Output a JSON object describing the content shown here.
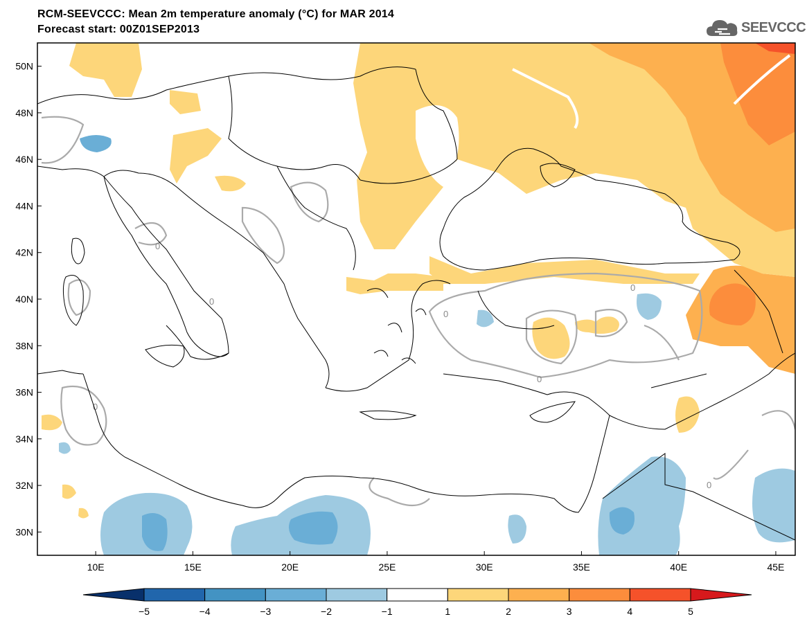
{
  "title_line1": "RCM-SEEVCCC: Mean 2m temperature anomaly (°C) for MAR 2014",
  "title_line2": "Forecast start: 00Z01SEP2013",
  "logo": {
    "text": "SEEVCCC",
    "icon": "cloud-icon"
  },
  "map": {
    "lon_range": [
      7,
      46
    ],
    "lat_range": [
      29,
      51
    ],
    "lat_ticks": [
      {
        "label": "50N",
        "value": 50
      },
      {
        "label": "48N",
        "value": 48
      },
      {
        "label": "46N",
        "value": 46
      },
      {
        "label": "44N",
        "value": 44
      },
      {
        "label": "42N",
        "value": 42
      },
      {
        "label": "40N",
        "value": 40
      },
      {
        "label": "38N",
        "value": 38
      },
      {
        "label": "36N",
        "value": 36
      },
      {
        "label": "34N",
        "value": 34
      },
      {
        "label": "32N",
        "value": 32
      },
      {
        "label": "30N",
        "value": 30
      }
    ],
    "lon_ticks": [
      {
        "label": "10E",
        "value": 10
      },
      {
        "label": "15E",
        "value": 15
      },
      {
        "label": "20E",
        "value": 20
      },
      {
        "label": "25E",
        "value": 25
      },
      {
        "label": "30E",
        "value": 30
      },
      {
        "label": "35E",
        "value": 35
      },
      {
        "label": "40E",
        "value": 40
      },
      {
        "label": "45E",
        "value": 45
      }
    ],
    "contour_label": "0"
  },
  "colorbar": {
    "labels": [
      "−5",
      "−4",
      "−3",
      "−2",
      "−1",
      "1",
      "2",
      "3",
      "4",
      "5"
    ],
    "colors": [
      "#08306b",
      "#2166ac",
      "#4393c3",
      "#6aaed6",
      "#9ecae1",
      "#ffffff",
      "#fdd67a",
      "#fdb04f",
      "#fc8d3c",
      "#f5522a",
      "#d7191c"
    ]
  },
  "palette": {
    "warm1": "#fdd67a",
    "warm2": "#fdb04f",
    "warm3": "#fc8d3c",
    "warm4": "#f5522a",
    "warm5": "#d7191c",
    "cool1": "#9ecae1",
    "cool2": "#6aaed6",
    "contour": "#aaaaaa",
    "border": "#000000"
  }
}
